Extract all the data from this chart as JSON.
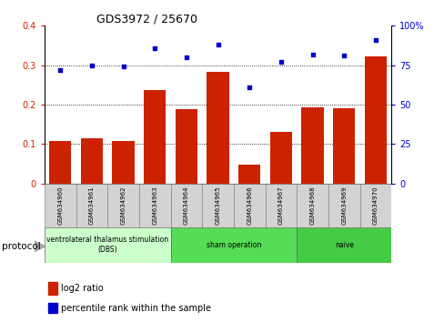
{
  "title": "GDS3972 / 25670",
  "samples": [
    "GSM634960",
    "GSM634961",
    "GSM634962",
    "GSM634963",
    "GSM634964",
    "GSM634965",
    "GSM634966",
    "GSM634967",
    "GSM634968",
    "GSM634969",
    "GSM634970"
  ],
  "log2_ratio": [
    0.107,
    0.115,
    0.107,
    0.238,
    0.188,
    0.282,
    0.047,
    0.13,
    0.193,
    0.19,
    0.323
  ],
  "percentile_rank": [
    72,
    75,
    74,
    86,
    80,
    88,
    61,
    77,
    82,
    81,
    91
  ],
  "bar_color": "#cc2200",
  "dot_color": "#0000cc",
  "ylim_left": [
    0,
    0.4
  ],
  "ylim_right": [
    0,
    100
  ],
  "yticks_left": [
    0,
    0.1,
    0.2,
    0.3,
    0.4
  ],
  "yticks_right": [
    0,
    25,
    50,
    75,
    100
  ],
  "groups": [
    {
      "label": "ventrolateral thalamus stimulation\n(DBS)",
      "start": 0,
      "end": 3,
      "color": "#ccffcc"
    },
    {
      "label": "sham operation",
      "start": 4,
      "end": 7,
      "color": "#55dd55"
    },
    {
      "label": "naive",
      "start": 8,
      "end": 10,
      "color": "#44cc44"
    }
  ],
  "protocol_label": "protocol",
  "legend_bar_label": "log2 ratio",
  "legend_dot_label": "percentile rank within the sample",
  "background_color": "#ffffff",
  "plot_bg_color": "#ffffff",
  "right_yticklabels": [
    "0",
    "25",
    "50",
    "75",
    "100%"
  ]
}
